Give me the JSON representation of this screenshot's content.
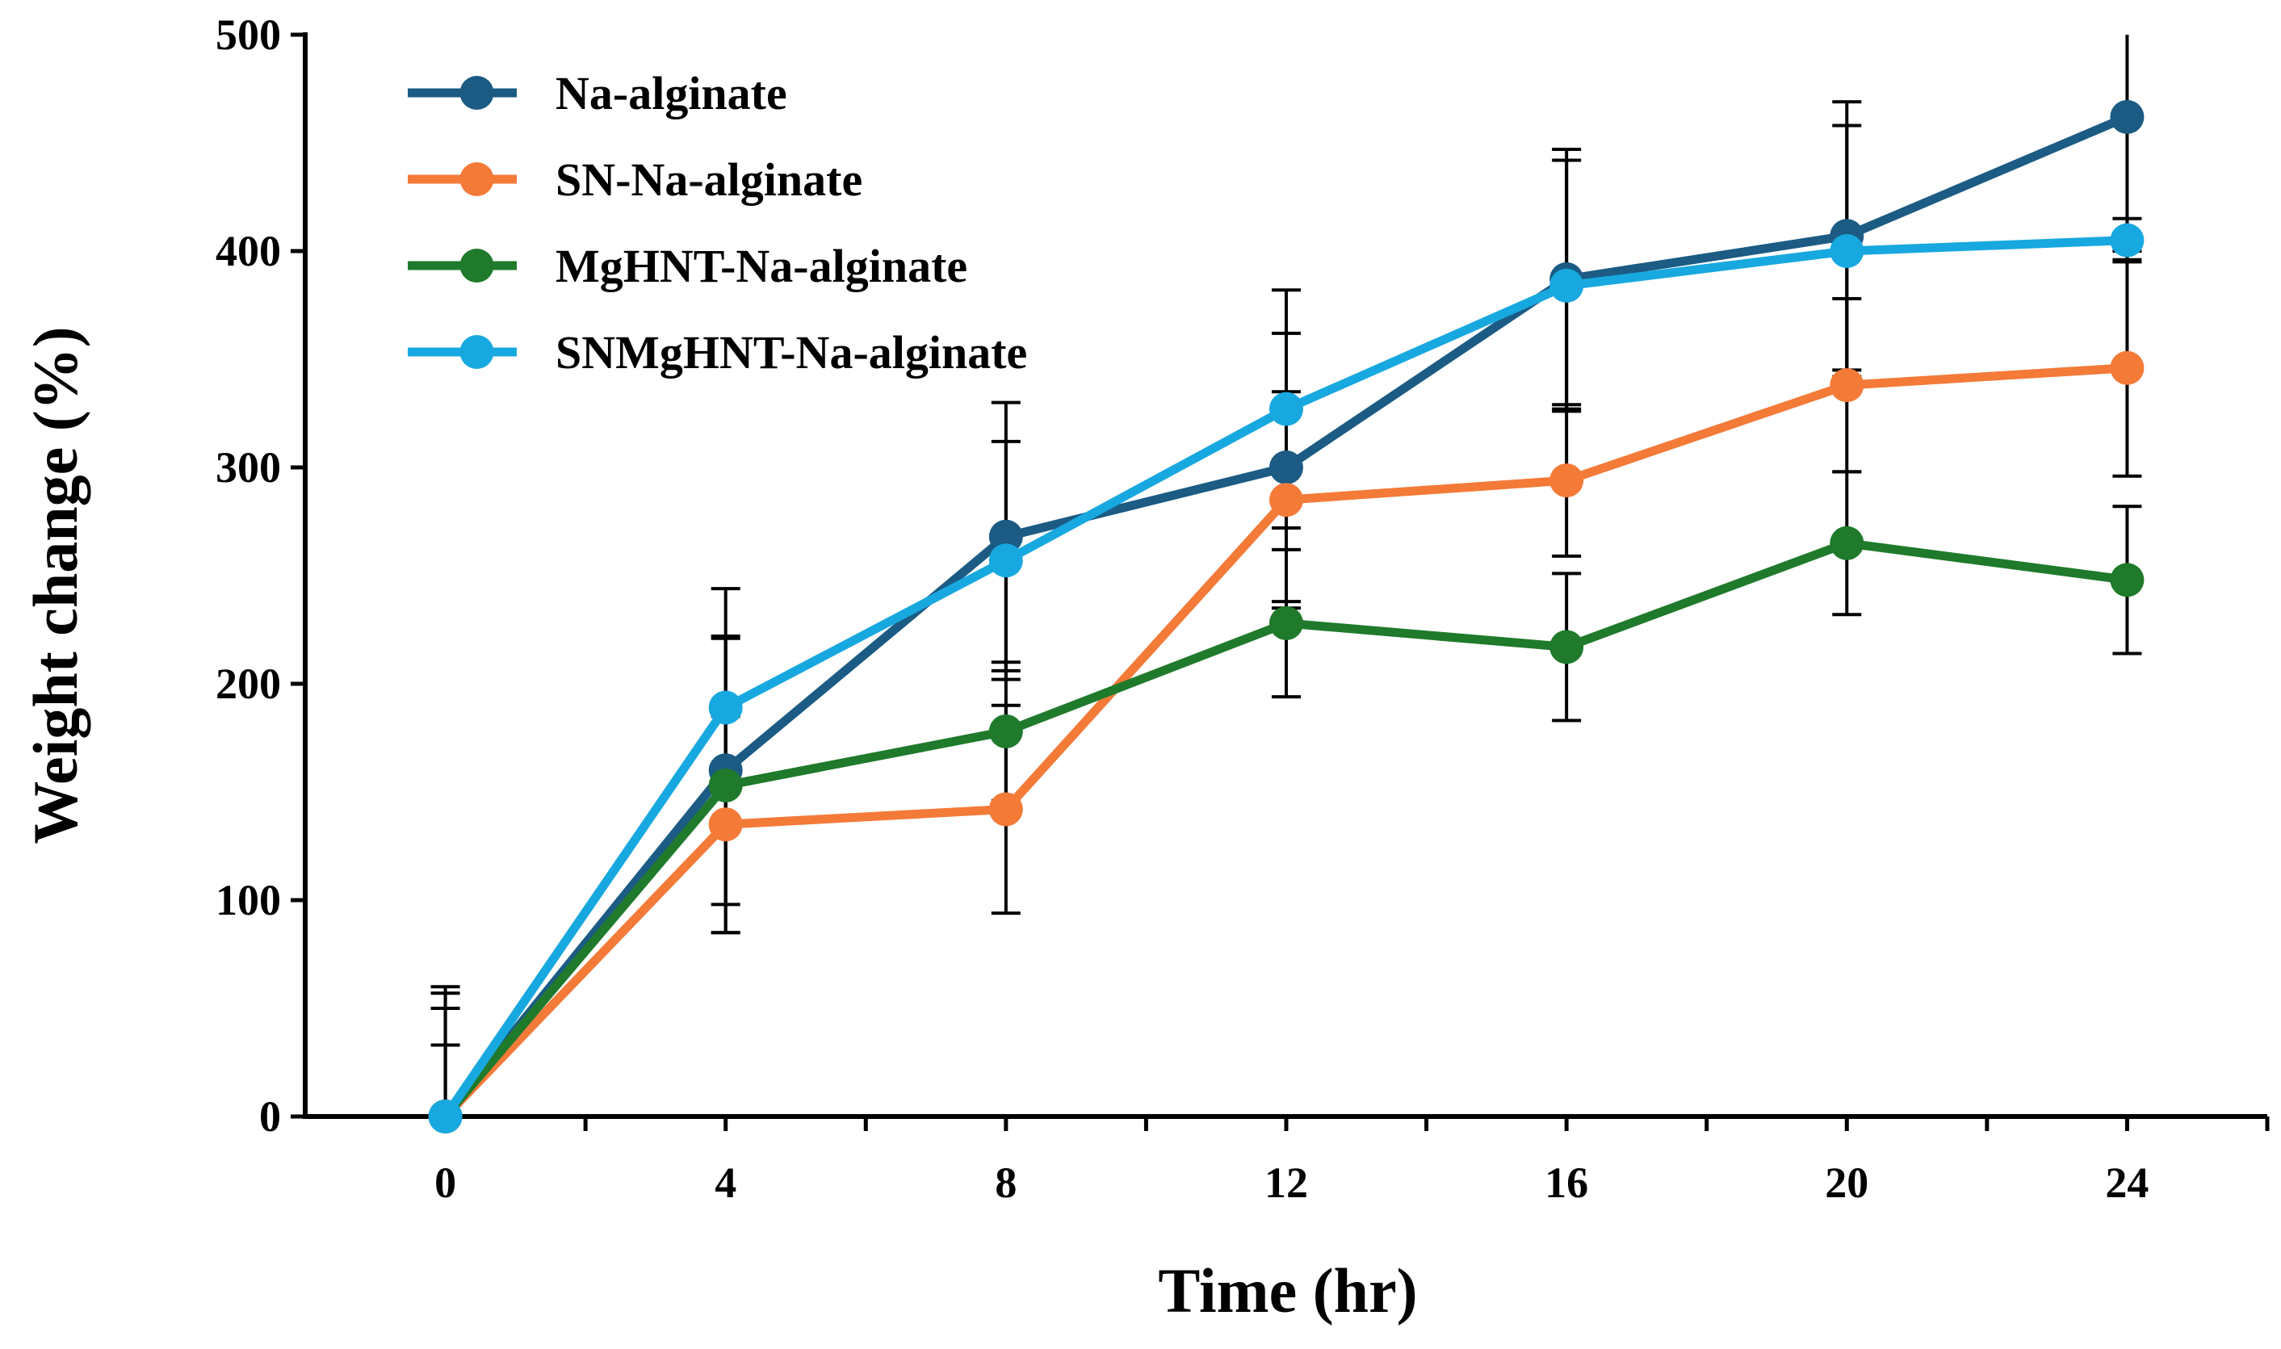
{
  "chart_data": {
    "type": "line",
    "title": "",
    "xlabel": "Time (hr)",
    "ylabel": "Weight change (%)",
    "x": [
      0,
      4,
      8,
      12,
      16,
      20,
      24
    ],
    "xlim": [
      -2,
      26
    ],
    "ylim": [
      0,
      500
    ],
    "xticks": [
      0,
      4,
      8,
      12,
      16,
      20,
      24
    ],
    "yticks": [
      0,
      100,
      200,
      300,
      400,
      500
    ],
    "grid": false,
    "legend_position": "top-left",
    "series": [
      {
        "name": "Na-alginate",
        "color": "#1b5b84",
        "values": [
          0,
          160,
          268,
          300,
          387,
          407,
          462
        ],
        "errors": [
          33,
          62,
          62,
          62,
          60,
          62,
          62
        ]
      },
      {
        "name": "SN-Na-alginate",
        "color": "#f47a38",
        "values": [
          0,
          135,
          142,
          285,
          294,
          338,
          346
        ],
        "errors": [
          50,
          50,
          48,
          50,
          35,
          40,
          50
        ]
      },
      {
        "name": "MgHNT-Na-alginate",
        "color": "#1f7a2b",
        "values": [
          0,
          153,
          178,
          228,
          217,
          265,
          248
        ],
        "errors": [
          57,
          68,
          32,
          34,
          34,
          33,
          34
        ]
      },
      {
        "name": "SNMgHNT-Na-alginate",
        "color": "#18a8e0",
        "values": [
          0,
          189,
          257,
          327,
          384,
          400,
          405
        ],
        "errors": [
          60,
          55,
          55,
          55,
          58,
          58,
          10
        ]
      }
    ]
  }
}
